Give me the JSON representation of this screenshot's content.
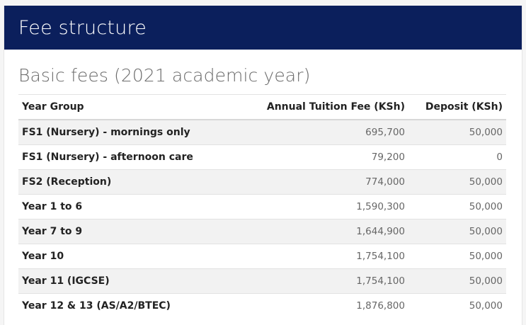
{
  "header": {
    "title": "Fee structure"
  },
  "section": {
    "title": "Basic fees (2021 academic year)"
  },
  "table": {
    "columns": [
      "Year Group",
      "Annual Tuition Fee (KSh)",
      "Deposit (KSh)"
    ],
    "rows": [
      {
        "group": "FS1 (Nursery) - mornings only",
        "tuition": "695,700",
        "deposit": "50,000"
      },
      {
        "group": "FS1 (Nursery) - afternoon care",
        "tuition": "79,200",
        "deposit": "0"
      },
      {
        "group": "FS2 (Reception)",
        "tuition": "774,000",
        "deposit": "50,000"
      },
      {
        "group": "Year 1 to 6",
        "tuition": "1,590,300",
        "deposit": "50,000"
      },
      {
        "group": "Year 7 to 9",
        "tuition": "1,644,900",
        "deposit": "50,000"
      },
      {
        "group": "Year 10",
        "tuition": "1,754,100",
        "deposit": "50,000"
      },
      {
        "group": "Year 11 (IGCSE)",
        "tuition": "1,754,100",
        "deposit": "50,000"
      },
      {
        "group": "Year 12 & 13 (AS/A2/BTEC)",
        "tuition": "1,876,800",
        "deposit": "50,000"
      }
    ]
  },
  "colors": {
    "banner_bg": "#0b1f5c",
    "stripe": "#f2f2f2"
  }
}
